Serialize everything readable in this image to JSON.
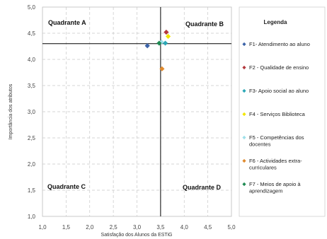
{
  "chart_data": {
    "type": "scatter",
    "xlabel": "Satisfação dos Alunos da ESTiG",
    "ylabel": "Importância dos atributos",
    "xlim": [
      1.0,
      5.0
    ],
    "ylim": [
      1.0,
      5.0
    ],
    "x_ticks": [
      "1,0",
      "1,5",
      "2,0",
      "2,5",
      "3,0",
      "3,5",
      "4,0",
      "4,5",
      "5,0"
    ],
    "y_ticks": [
      "5,0",
      "4,5",
      "4,0",
      "3,5",
      "3,0",
      "2,5",
      "2,0",
      "1,5",
      "1,0"
    ],
    "grid": true,
    "divider": {
      "x": 3.5,
      "y": 4.3
    },
    "quadrants": [
      {
        "label": "Quadrante A",
        "position": "top-left"
      },
      {
        "label": "Quadrante B",
        "position": "top-right"
      },
      {
        "label": "Quadrante C",
        "position": "bottom-left"
      },
      {
        "label": "Quadrante D",
        "position": "bottom-right"
      }
    ],
    "legend": {
      "title": "Legenda",
      "placement": "right"
    },
    "series": [
      {
        "name": "F1- Atendimento ao aluno",
        "lines": [
          "F1- Atendimento ao aluno"
        ],
        "color": "#3b63a8",
        "x": 3.22,
        "y": 4.26
      },
      {
        "name": "F2 - Qualidade de ensino",
        "lines": [
          "F2 - Qualidade de ensino"
        ],
        "color": "#b3383c",
        "x": 3.62,
        "y": 4.52
      },
      {
        "name": "F3- Apoio social ao aluno",
        "lines": [
          "F3- Apoio social ao aluno"
        ],
        "color": "#2aa7b6",
        "x": 3.6,
        "y": 4.31
      },
      {
        "name": "F4 - Serviços Biblioteca",
        "lines": [
          "F4 - Serviços Biblioteca"
        ],
        "color": "#f2e600",
        "x": 3.66,
        "y": 4.44
      },
      {
        "name": "F5 - Competências dos docentes",
        "lines": [
          "F5 - Competências dos",
          "docentes"
        ],
        "color": "#9fe0ea",
        "x": 3.52,
        "y": 4.33
      },
      {
        "name": "F6 - Actividades extra-curriculares",
        "lines": [
          "F6 - Actividades extra-",
          "curriculares"
        ],
        "color": "#e08a2e",
        "x": 3.53,
        "y": 3.82
      },
      {
        "name": "F7 - Meios de apoio à aprendizagem",
        "lines": [
          "F7 - Meios de apoio à",
          "aprendizagem"
        ],
        "color": "#1e8a52",
        "x": 3.47,
        "y": 4.31
      }
    ]
  }
}
